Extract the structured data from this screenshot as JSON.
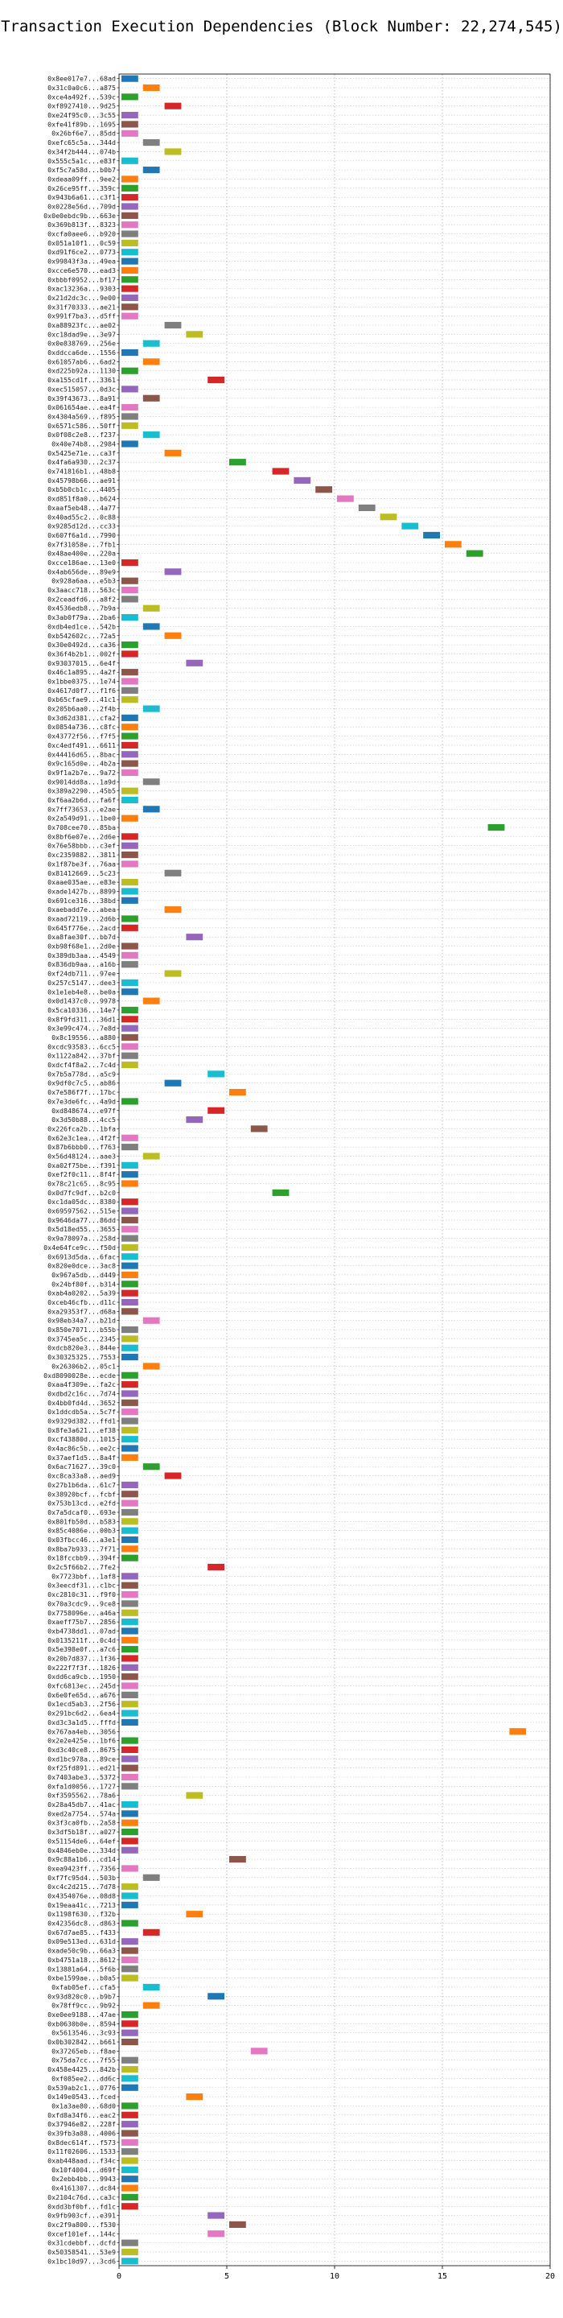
{
  "chart_data": {
    "type": "bar",
    "orientation": "horizontal-ranges",
    "title": "Transaction Execution Dependencies (Block Number: 22,274,545)",
    "xlabel": "",
    "ylabel": "",
    "xlim": [
      0,
      20
    ],
    "xticks": [
      0,
      5,
      10,
      15,
      20
    ],
    "grid": true,
    "grid_style": "dotted",
    "legend": "none",
    "palette": [
      "#1f77b4",
      "#ff7f0e",
      "#2ca02c",
      "#d62728",
      "#9467bd",
      "#8c564b",
      "#e377c2",
      "#7f7f7f",
      "#bcbd22",
      "#17becf"
    ],
    "categories": [
      "0x8ee017e7...68ad",
      "0x31c0a0c6...a875",
      "0xce4a492f...539c",
      "0xf8927410...9d25",
      "0xe24f95c0...3c55",
      "0xfe41f89b...1695",
      "0x26bf6e7...85dd",
      "0xefc65c5a...344d",
      "0x34f2b444...074b",
      "0x555c5a1c...e83f",
      "0xf5c7a58d...b0b7",
      "0xdeaa09ff...9ee2",
      "0x26ce95ff...359c",
      "0x943b6a61...c3f1",
      "0x0228e56d...709d",
      "0x0e0ebdc9b...663e",
      "0x369b813f...8323",
      "0xcfa0aee6...b920",
      "0x051a10f1...0c59",
      "0xd91f6ce2...0773",
      "0x99843f3a...49ea",
      "0xcce6e570...ead3",
      "0xbbbf0952...bf17",
      "0xac13236a...9303",
      "0x21d2dc3c...9e00",
      "0x31f70333...ae21",
      "0x991f7ba3...d5ff",
      "0xa88923fc...ae02",
      "0xc18dad9e...3e97",
      "0x0e838769...256e",
      "0xddcca6de...1556",
      "0x61057ab6...6ad2",
      "0xd225b92a...1130",
      "0xa155cd1f...3361",
      "0xec515057...0d3c",
      "0x39f43673...8a91",
      "0x061654ae...ea4f",
      "0x4304a569...f895",
      "0x6571c586...50ff",
      "0x0f08c2e8...f237",
      "0x40e74b8...2984",
      "0x5425e71e...ca3f",
      "0x4fa6a930...2c37",
      "0x741816b1...48b8",
      "0x45798b66...ae91",
      "0xb5b0cb1c...4405",
      "0xd851f8a0...b624",
      "0xaaf5eb48...4a77",
      "0x40ad55c2...0c88",
      "0x9285d12d...cc33",
      "0x607f6a1d...7990",
      "0x7f31058e...7fb1",
      "0x48ae400e...220a",
      "0xcce186ae...13e0",
      "0x4ab656de...89e9",
      "0x928a6aa...e5b3",
      "0x3aacc718...563c",
      "0x2ceadfd6...a8f2",
      "0x4536edb8...7b9a",
      "0x3ab0f79a...2ba6",
      "0xdb4ed1ce...542b",
      "0xb542602c...72a5",
      "0x30e0492d...ca36",
      "0x36f4b2b1...002f",
      "0x93037015...6e4f",
      "0x46c1a895...4a2f",
      "0x1bbe0375...1e74",
      "0x4617d0f7...f1f6",
      "0xb65cfae9...41c1",
      "0x205b6aa0...2f4b",
      "0x3d62d381...cfa2",
      "0x0854a736...c8fc",
      "0x43772f56...f7f5",
      "0xc4edf491...6611",
      "0x44416d65...8bac",
      "0x9c165d0e...4b2a",
      "0x9f1a2b7e...9a72",
      "0x9014dd8a...1a9d",
      "0x389a2290...45b5",
      "0xf6aa2b6d...fa6f",
      "0x7ff73653...e2ae",
      "0x2a549d91...1be0",
      "0x708cee70...85ba",
      "0x8bf6e07e...2d6e",
      "0x76e58bbb...c3ef",
      "0xc2359882...3811",
      "0x1f87be3f...76aa",
      "0x81412669...5c23",
      "0xaae035ae...e83e",
      "0xade1427b...8899",
      "0x691ce316...38bd",
      "0xaebadd7e...abea",
      "0xaad72119...2d6b",
      "0x645f776e...2acd",
      "0xa8fae30f...bb7d",
      "0xb98f68e1...2d0e",
      "0x389db3aa...4549",
      "0x836db9aa...a16b",
      "0xf24db711...97ee",
      "0x257c5147...dee3",
      "0x1e1eb4e8...be0a",
      "0x0d1437c0...9978",
      "0x5ca10336...14e7",
      "0x8f9fd311...36d1",
      "0x3e99c474...7e8d",
      "0x8c19556...a880",
      "0xcdc93583...6cc5",
      "0x1122a842...37bf",
      "0xdcf4f8a2...7c4d",
      "0x7b5a778d...a5c9",
      "0x9df0c7c5...ab86",
      "0x7e586f7f...17bc",
      "0x7e3de6fc...4a9d",
      "0xd848674...e97f",
      "0x3d50b88...4cc5",
      "0x226fca2b...1bfa",
      "0x62e3c1ea...4f2f",
      "0x87b6bbb0...f763",
      "0x56d48124...aae3",
      "0xa02f75be...f391",
      "0xef2f0c11...8f4f",
      "0x78c21c65...8c95",
      "0x0d7fc9df...b2c0",
      "0xc1da05dc...8380",
      "0x69597562...515e",
      "0x9646da77...86dd",
      "0x5d18ed55...3655",
      "0x9a78097a...258d",
      "0x4e64fce9c...f50d",
      "0x6913d5da...6fac",
      "0x820e0dce...3ac8",
      "0x967a5db...d449",
      "0x24bf80f...b314",
      "0xab4a0202...5a39",
      "0xceb46cfb...d11c",
      "0xa29353f7...d68a",
      "0x98eb34a7...b21d",
      "0x850e7071...b55b",
      "0x3745ea5c...2345",
      "0xdcb820e3...844e",
      "0x30325325...7553",
      "0x26306b2...05c1",
      "0xd8090028e...ecde",
      "0xaa4f309e...fa2c",
      "0xdbd2c16c...7d74",
      "0x4bb0fd4d...3652",
      "0x1ddcdb5a...5c7f",
      "0x9329d382...ffd1",
      "0x8fe3a621...ef38",
      "0xcf43880d...1015",
      "0x4ac86c5b...ee2c",
      "0x37aef1d5...8a4f",
      "0x6ac71627...39c0",
      "0xc8ca33a8...aed9",
      "0x27b1b6da...61c7",
      "0x38920bcf...fcbf",
      "0x753b13cd...e2fd",
      "0x7a5dcaf0...693e",
      "0x801fb50d...b583",
      "0x85c4086e...00b3",
      "0x03fbcc46...a3e1",
      "0x8ba7b933...7f71",
      "0x18fccbb9...394f",
      "0x2c5f66b2...7fe2",
      "0x7723bbf...1af8",
      "0x3eecdf31...c1bc",
      "0xc2810c31...f9f0",
      "0x70a3cdc9...9ce8",
      "0x7758096e...a46a",
      "0xaeff75b7...2856",
      "0xb4738dd1...07ad",
      "0x0135211f...0c4d",
      "0x5e398e0f...a7c6",
      "0x20b7d837...1f36",
      "0x222f7f3f...1826",
      "0xdd6ca9cb...1950",
      "0xfc6813ec...245d",
      "0x6e0fe65d...a676",
      "0x1ecd5ab3...2f56",
      "0x291bc6d2...6ea4",
      "0xd3c3a1d5...fffd",
      "0x767aa4eb...3056",
      "0x2e2e425e...1bf6",
      "0xd3c40ce8...8675",
      "0xd1bc978a...89ce",
      "0xf25fd891...ed21",
      "0x7403abe3...5372",
      "0xfa1d0056...1727",
      "0xf3595562...78a6",
      "0x28a45db7...41ac",
      "0xed2a7754...574a",
      "0x3f3ca0fb...2a58",
      "0x3df5b18f...a027",
      "0x51154de6...64ef",
      "0x4846eb0e...334d",
      "0x9c88a1b6...cd14",
      "0xea9423ff...7356",
      "0xf7fc95d4...503b",
      "0xc4c2d215...7d78",
      "0x4354076e...08d8",
      "0x19eaa41c...7213",
      "0x1198f630...f32b",
      "0x42356dc8...d863",
      "0x67d7ae85...f433",
      "0x09e513ed...631d",
      "0xade50c9b...66a3",
      "0xb4751a18...8612",
      "0x13881a64...5f6b",
      "0xbe1599ae...b0a5",
      "0xfab05ef...cfa5",
      "0x93d820c0...b9b7",
      "0x78ff9cc...9b92",
      "0xe0ee9188...47ae",
      "0xb0630b0e...8594",
      "0x5613546...3c93",
      "0x0b302842...b661",
      "0x37265eb...f8ae",
      "0x75da7cc...7f55",
      "0x458e4425...842b",
      "0xf085ee2...dd6c",
      "0x539ab2c1...0776",
      "0x149e0543...fced",
      "0x1a3ae80...68d0",
      "0xfd8a34f6...eac2",
      "0x37946e82...228f",
      "0x39fb3a88...4006",
      "0x8dec614f...f573",
      "0x11f02606...1533",
      "0xab448aad...f34c",
      "0x10f4004...d69f",
      "0x2ebb4bb...9943",
      "0x4161307...dc84",
      "0x2104c76d...ca3c",
      "0xdd3bf0bf...fd1c",
      "0x9fb903cf...e391",
      "0xc2f9a800...f530",
      "0xcef101ef...144c",
      "0x31cdebbf...dcfd",
      "0x50358541...53e9",
      "0x1bc10d97...3cd6"
    ],
    "ranges": [
      [
        0,
        1
      ],
      [
        1,
        2
      ],
      [
        0,
        1
      ],
      [
        2,
        3
      ],
      [
        0,
        1
      ],
      [
        0,
        1
      ],
      [
        0,
        1
      ],
      [
        1,
        2
      ],
      [
        2,
        3
      ],
      [
        0,
        1
      ],
      [
        1,
        2
      ],
      [
        0,
        1
      ],
      [
        0,
        1
      ],
      [
        0,
        1
      ],
      [
        0,
        1
      ],
      [
        0,
        1
      ],
      [
        0,
        1
      ],
      [
        0,
        1
      ],
      [
        0,
        1
      ],
      [
        0,
        1
      ],
      [
        0,
        1
      ],
      [
        0,
        1
      ],
      [
        0,
        1
      ],
      [
        0,
        1
      ],
      [
        0,
        1
      ],
      [
        0,
        1
      ],
      [
        0,
        1
      ],
      [
        2,
        3
      ],
      [
        3,
        4
      ],
      [
        1,
        2
      ],
      [
        0,
        1
      ],
      [
        1,
        2
      ],
      [
        0,
        1
      ],
      [
        4,
        5
      ],
      [
        0,
        1
      ],
      [
        1,
        2
      ],
      [
        0,
        1
      ],
      [
        0,
        1
      ],
      [
        0,
        1
      ],
      [
        1,
        2
      ],
      [
        0,
        1
      ],
      [
        2,
        3
      ],
      [
        5,
        6
      ],
      [
        7,
        8
      ],
      [
        8,
        9
      ],
      [
        9,
        10
      ],
      [
        10,
        11
      ],
      [
        11,
        12
      ],
      [
        12,
        13
      ],
      [
        13,
        14
      ],
      [
        14,
        15
      ],
      [
        15,
        16
      ],
      [
        16,
        17
      ],
      [
        0,
        1
      ],
      [
        2,
        3
      ],
      [
        0,
        1
      ],
      [
        0,
        1
      ],
      [
        0,
        1
      ],
      [
        1,
        2
      ],
      [
        0,
        1
      ],
      [
        1,
        2
      ],
      [
        2,
        3
      ],
      [
        0,
        1
      ],
      [
        0,
        1
      ],
      [
        3,
        4
      ],
      [
        0,
        1
      ],
      [
        0,
        1
      ],
      [
        0,
        1
      ],
      [
        0,
        1
      ],
      [
        1,
        2
      ],
      [
        0,
        1
      ],
      [
        0,
        1
      ],
      [
        0,
        1
      ],
      [
        0,
        1
      ],
      [
        0,
        1
      ],
      [
        0,
        1
      ],
      [
        0,
        1
      ],
      [
        1,
        2
      ],
      [
        0,
        1
      ],
      [
        0,
        1
      ],
      [
        1,
        2
      ],
      [
        0,
        1
      ],
      [
        17,
        18
      ],
      [
        0,
        1
      ],
      [
        0,
        1
      ],
      [
        0,
        1
      ],
      [
        0,
        1
      ],
      [
        2,
        3
      ],
      [
        0,
        1
      ],
      [
        0,
        1
      ],
      [
        0,
        1
      ],
      [
        2,
        3
      ],
      [
        0,
        1
      ],
      [
        0,
        1
      ],
      [
        3,
        4
      ],
      [
        0,
        1
      ],
      [
        0,
        1
      ],
      [
        0,
        1
      ],
      [
        2,
        3
      ],
      [
        0,
        1
      ],
      [
        0,
        1
      ],
      [
        1,
        2
      ],
      [
        0,
        1
      ],
      [
        0,
        1
      ],
      [
        0,
        1
      ],
      [
        0,
        1
      ],
      [
        0,
        1
      ],
      [
        0,
        1
      ],
      [
        0,
        1
      ],
      [
        4,
        5
      ],
      [
        2,
        3
      ],
      [
        5,
        6
      ],
      [
        0,
        1
      ],
      [
        4,
        5
      ],
      [
        3,
        4
      ],
      [
        6,
        7
      ],
      [
        0,
        1
      ],
      [
        0,
        1
      ],
      [
        1,
        2
      ],
      [
        0,
        1
      ],
      [
        0,
        1
      ],
      [
        0,
        1
      ],
      [
        7,
        8
      ],
      [
        0,
        1
      ],
      [
        0,
        1
      ],
      [
        0,
        1
      ],
      [
        0,
        1
      ],
      [
        0,
        1
      ],
      [
        0,
        1
      ],
      [
        0,
        1
      ],
      [
        0,
        1
      ],
      [
        0,
        1
      ],
      [
        0,
        1
      ],
      [
        0,
        1
      ],
      [
        0,
        1
      ],
      [
        0,
        1
      ],
      [
        1,
        2
      ],
      [
        0,
        1
      ],
      [
        0,
        1
      ],
      [
        0,
        1
      ],
      [
        0,
        1
      ],
      [
        1,
        2
      ],
      [
        0,
        1
      ],
      [
        0,
        1
      ],
      [
        0,
        1
      ],
      [
        0,
        1
      ],
      [
        0,
        1
      ],
      [
        0,
        1
      ],
      [
        0,
        1
      ],
      [
        0,
        1
      ],
      [
        0,
        1
      ],
      [
        0,
        1
      ],
      [
        1,
        2
      ],
      [
        2,
        3
      ],
      [
        0,
        1
      ],
      [
        0,
        1
      ],
      [
        0,
        1
      ],
      [
        0,
        1
      ],
      [
        0,
        1
      ],
      [
        0,
        1
      ],
      [
        0,
        1
      ],
      [
        0,
        1
      ],
      [
        0,
        1
      ],
      [
        4,
        5
      ],
      [
        0,
        1
      ],
      [
        0,
        1
      ],
      [
        0,
        1
      ],
      [
        0,
        1
      ],
      [
        0,
        1
      ],
      [
        0,
        1
      ],
      [
        0,
        1
      ],
      [
        0,
        1
      ],
      [
        0,
        1
      ],
      [
        0,
        1
      ],
      [
        0,
        1
      ],
      [
        0,
        1
      ],
      [
        0,
        1
      ],
      [
        0,
        1
      ],
      [
        0,
        1
      ],
      [
        0,
        1
      ],
      [
        0,
        1
      ],
      [
        18,
        19
      ],
      [
        0,
        1
      ],
      [
        0,
        1
      ],
      [
        0,
        1
      ],
      [
        0,
        1
      ],
      [
        0,
        1
      ],
      [
        0,
        1
      ],
      [
        3,
        4
      ],
      [
        0,
        1
      ],
      [
        0,
        1
      ],
      [
        0,
        1
      ],
      [
        0,
        1
      ],
      [
        0,
        1
      ],
      [
        0,
        1
      ],
      [
        5,
        6
      ],
      [
        0,
        1
      ],
      [
        1,
        2
      ],
      [
        0,
        1
      ],
      [
        0,
        1
      ],
      [
        0,
        1
      ],
      [
        3,
        4
      ],
      [
        0,
        1
      ],
      [
        1,
        2
      ],
      [
        0,
        1
      ],
      [
        0,
        1
      ],
      [
        0,
        1
      ],
      [
        0,
        1
      ],
      [
        0,
        1
      ],
      [
        1,
        2
      ],
      [
        4,
        5
      ],
      [
        1,
        2
      ],
      [
        0,
        1
      ],
      [
        0,
        1
      ],
      [
        0,
        1
      ],
      [
        0,
        1
      ],
      [
        6,
        7
      ],
      [
        0,
        1
      ],
      [
        0,
        1
      ],
      [
        0,
        1
      ],
      [
        0,
        1
      ],
      [
        3,
        4
      ],
      [
        0,
        1
      ],
      [
        0,
        1
      ],
      [
        0,
        1
      ],
      [
        0,
        1
      ],
      [
        0,
        1
      ],
      [
        0,
        1
      ],
      [
        0,
        1
      ],
      [
        0,
        1
      ],
      [
        0,
        1
      ],
      [
        0,
        1
      ],
      [
        0,
        1
      ],
      [
        0,
        1
      ],
      [
        4,
        5
      ],
      [
        5,
        6
      ],
      [
        4,
        5
      ],
      [
        0,
        1
      ],
      [
        0,
        1
      ],
      [
        0,
        1
      ]
    ]
  }
}
